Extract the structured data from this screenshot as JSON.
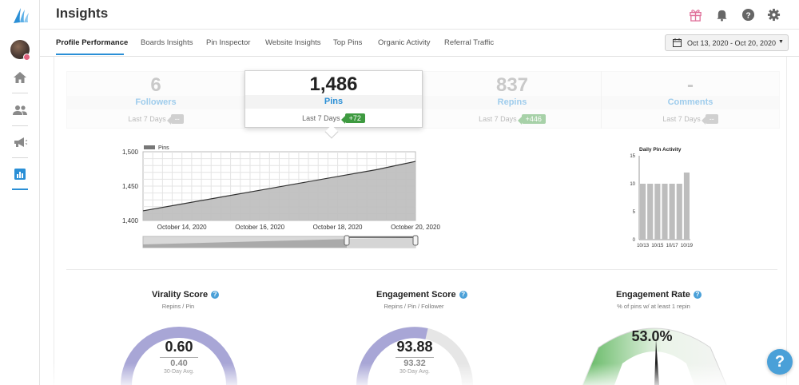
{
  "header": {
    "title": "Insights"
  },
  "sidebar": {
    "items": [
      "logo",
      "avatar",
      "home",
      "people",
      "megaphone",
      "analytics"
    ]
  },
  "tabs": [
    {
      "label": "Profile Performance",
      "active": true
    },
    {
      "label": "Boards Insights"
    },
    {
      "label": "Pin Inspector"
    },
    {
      "label": "Website Insights"
    },
    {
      "label": "Top Pins"
    },
    {
      "label": "Organic Activity"
    },
    {
      "label": "Referral Traffic"
    }
  ],
  "date_range": "Oct 13, 2020 - Oct 20, 2020",
  "stats": [
    {
      "value": "6",
      "label": "Followers",
      "sub": "Last 7 Days",
      "change": "--"
    },
    {
      "value": "1,486",
      "label": "Pins",
      "sub": "Last 7 Days",
      "change": "+72"
    },
    {
      "value": "837",
      "label": "Repins",
      "sub": "Last 7 Days",
      "change": "+446"
    },
    {
      "value": "-",
      "label": "Comments",
      "sub": "Last 7 Days",
      "change": "--"
    }
  ],
  "colors": {
    "accent": "#2a8fd6",
    "area": "#bdbdbd",
    "positive": "#3e9a40",
    "gauge": "#a8a6d6",
    "rate": "#5cb85c"
  },
  "chart_data": [
    {
      "type": "area",
      "legend": [
        "Pins"
      ],
      "x_tick_labels": [
        "October 14, 2020",
        "October 16, 2020",
        "October 18, 2020",
        "October 20, 2020"
      ],
      "y_tick_labels": [
        "1,500",
        "1,450",
        "1,400"
      ],
      "ylim": [
        1400,
        1500
      ],
      "series": [
        {
          "name": "Pins",
          "x": [
            0,
            1,
            2,
            3,
            4,
            5,
            6,
            7
          ],
          "values": [
            1414,
            1424,
            1434,
            1444,
            1454,
            1464,
            1474,
            1486
          ]
        }
      ]
    },
    {
      "type": "bar",
      "title": "Daily Pin Activity",
      "categories": [
        "10/13",
        "10/14",
        "10/15",
        "10/16",
        "10/17",
        "10/18",
        "10/19"
      ],
      "x_tick_labels": [
        "10/13",
        "10/15",
        "10/17",
        "10/19"
      ],
      "values": [
        10,
        10,
        10,
        10,
        10,
        10,
        12
      ],
      "y_tick_labels": [
        "15",
        "10",
        "5",
        "0"
      ],
      "ylim": [
        0,
        15
      ]
    }
  ],
  "gauges": [
    {
      "title": "Virality Score",
      "subtitle": "Repins / Pin",
      "value": "0.60",
      "avg": "0.40",
      "avg_label": "30-Day Avg."
    },
    {
      "title": "Engagement Score",
      "subtitle": "Repins / Pin / Follower",
      "value": "93.88",
      "avg": "93.32",
      "avg_label": "30-Day Avg."
    },
    {
      "title": "Engagement Rate",
      "subtitle": "% of pins w/ at least 1 repin",
      "value": "53.0%"
    }
  ],
  "help_fab": "?"
}
